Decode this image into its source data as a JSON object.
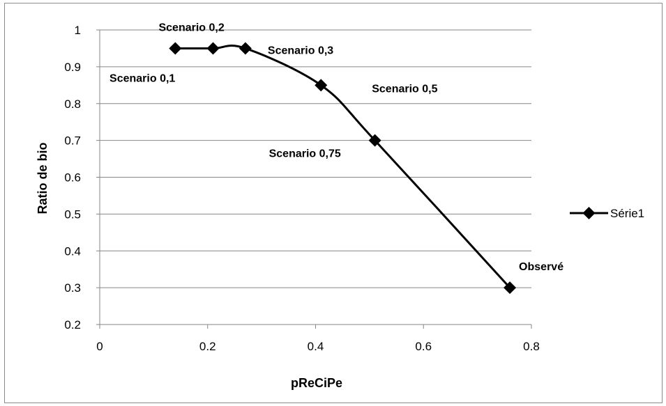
{
  "chart_data": {
    "type": "line",
    "xlabel": "pReCiPe",
    "ylabel": "Ratio de bio",
    "xlim": [
      0,
      0.8
    ],
    "ylim": [
      0.2,
      1
    ],
    "x_ticks": [
      0,
      0.2,
      0.4,
      0.6,
      0.8
    ],
    "x_tick_labels": [
      "0",
      "0.2",
      "0.4",
      "0.6",
      "0.8"
    ],
    "y_ticks": [
      0.2,
      0.3,
      0.4,
      0.5,
      0.6,
      0.7,
      0.8,
      0.9,
      1
    ],
    "y_tick_labels": [
      "0.2",
      "0.3",
      "0.4",
      "0.5",
      "0.6",
      "0.7",
      "0.8",
      "0.9",
      "1"
    ],
    "grid": "horizontal",
    "legend_position": "right",
    "smooth": true,
    "marker": "diamond",
    "series": [
      {
        "name": "Série1",
        "color": "#000000",
        "points": [
          {
            "x": 0.14,
            "y": 0.95,
            "label": "Scenario 0,1"
          },
          {
            "x": 0.21,
            "y": 0.95,
            "label": "Scenario 0,2"
          },
          {
            "x": 0.27,
            "y": 0.95,
            "label": "Scenario 0,3"
          },
          {
            "x": 0.41,
            "y": 0.85,
            "label": "Scenario 0,5"
          },
          {
            "x": 0.51,
            "y": 0.7,
            "label": "Scenario 0,75"
          },
          {
            "x": 0.76,
            "y": 0.3,
            "label": "Observé"
          }
        ]
      }
    ]
  }
}
